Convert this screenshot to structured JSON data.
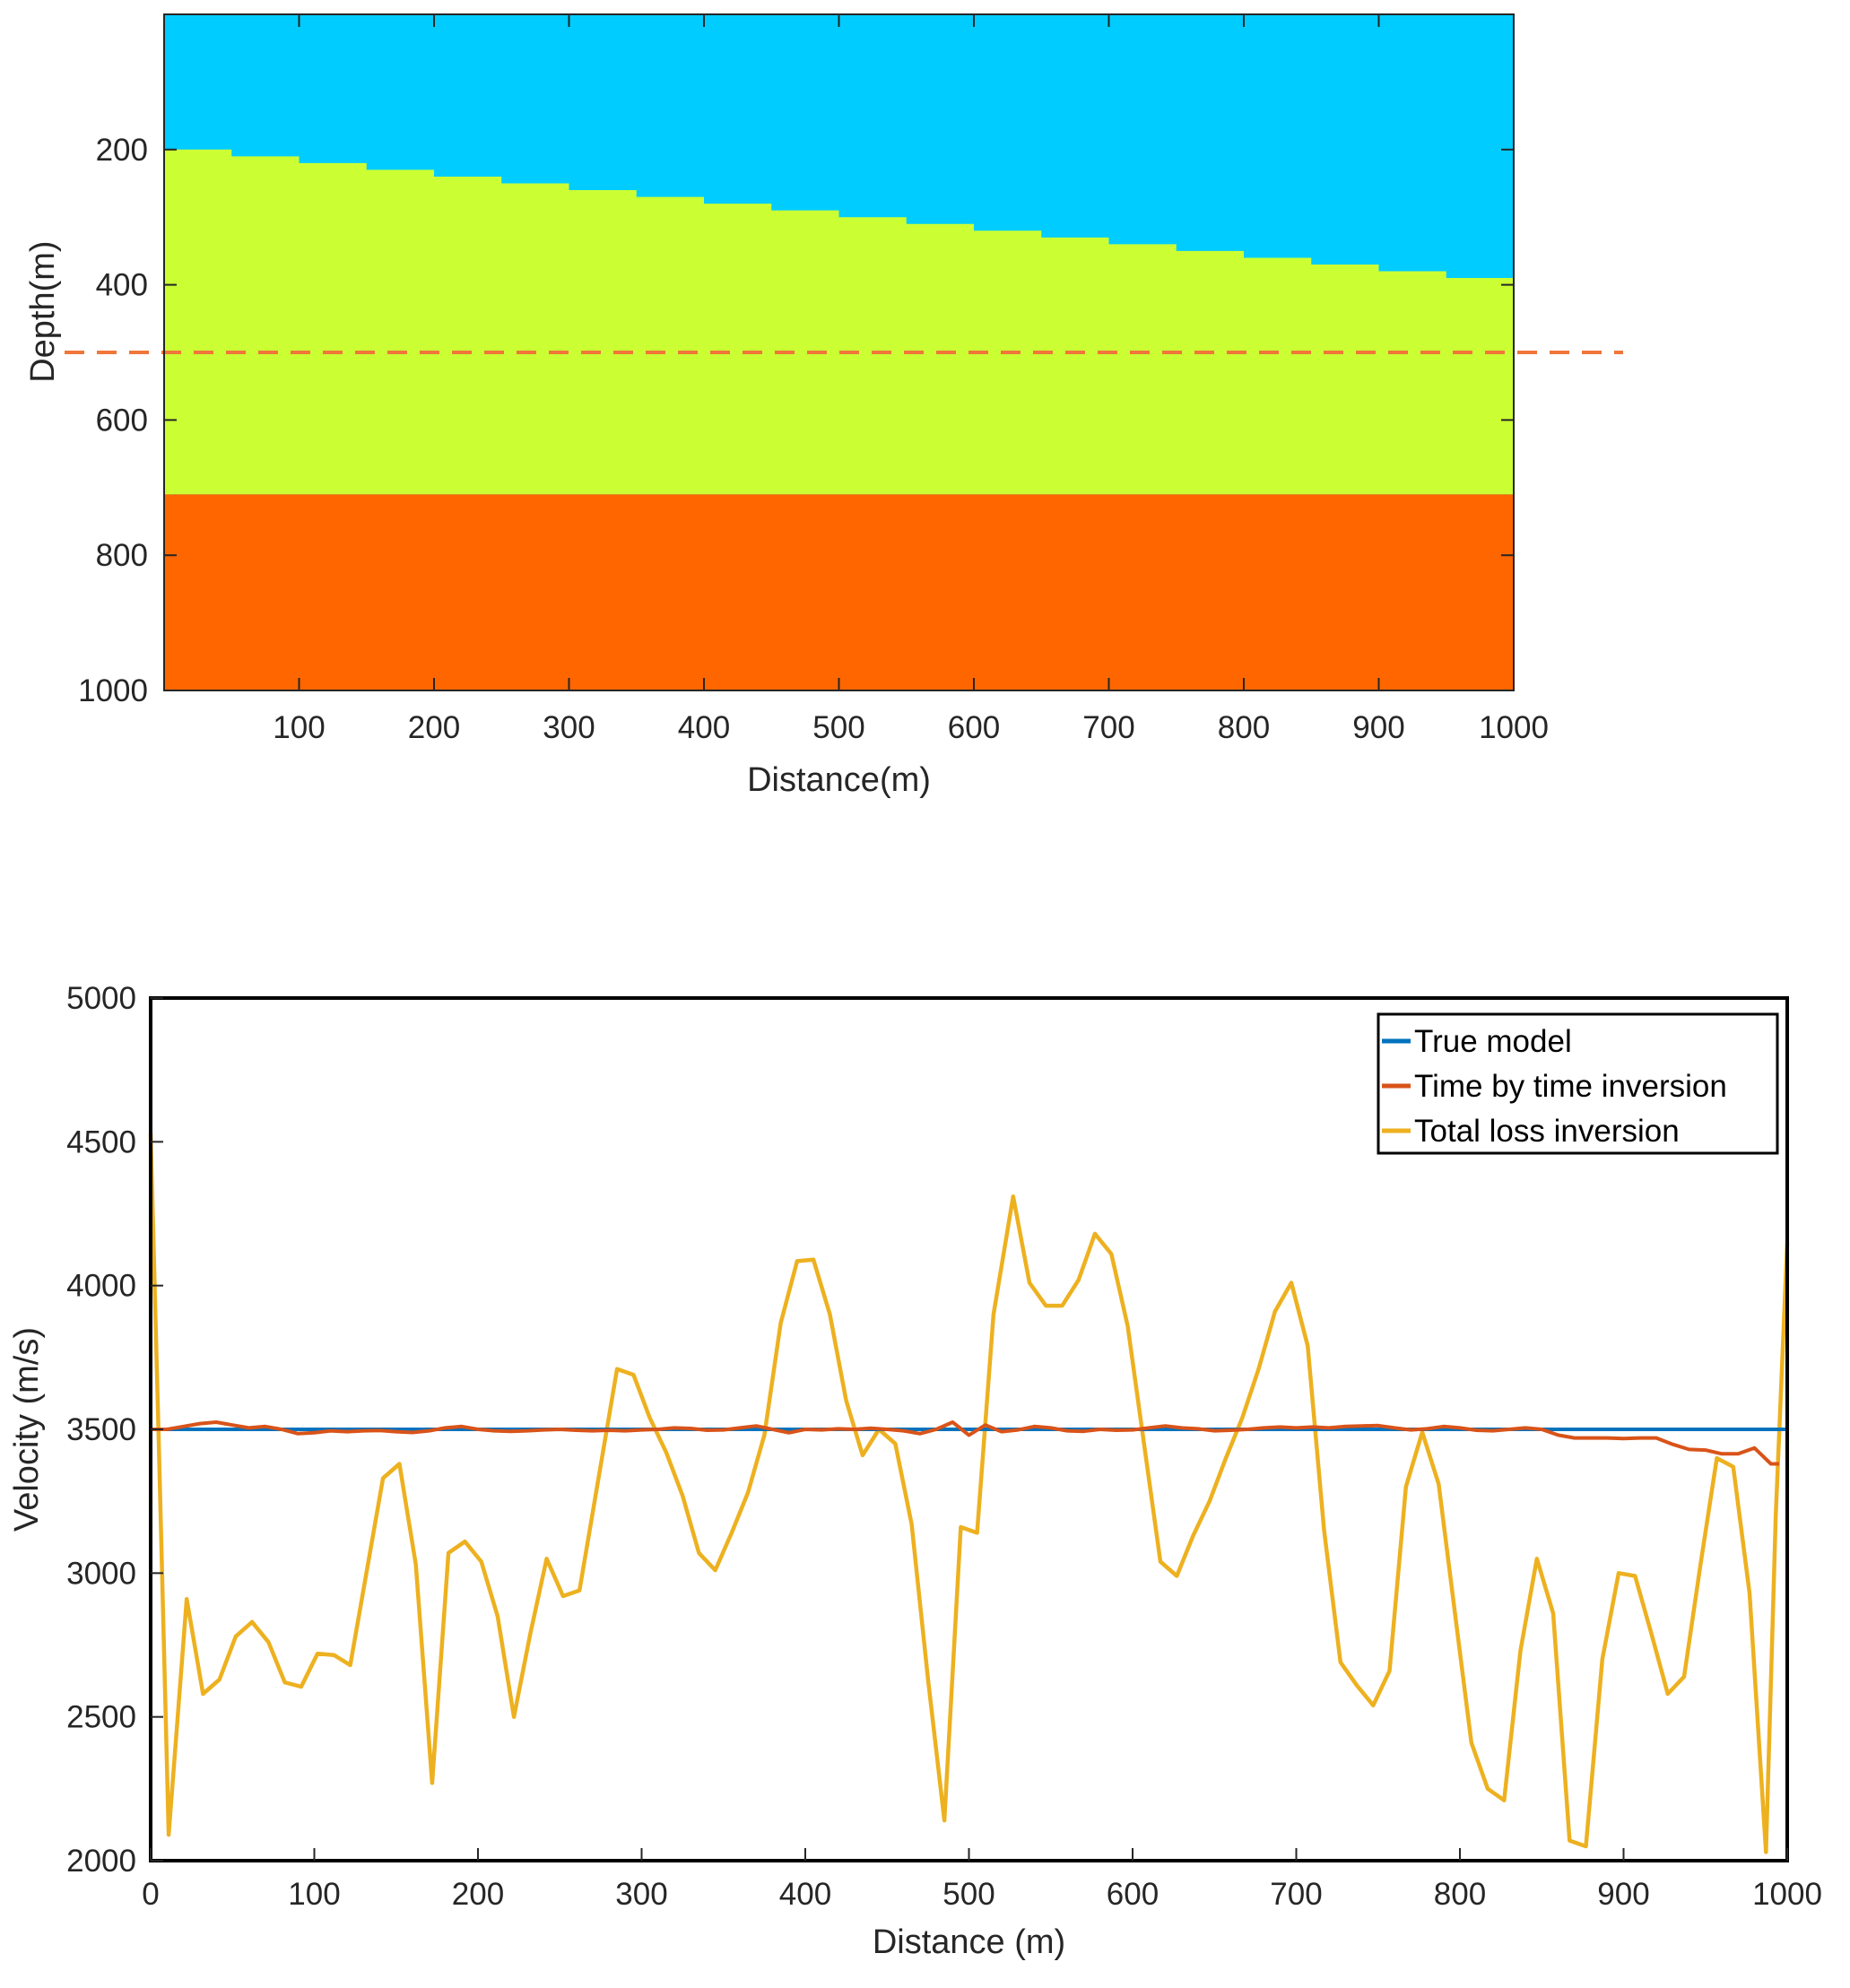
{
  "chart_data": [
    {
      "type": "heatmap",
      "xlabel": "Distance(m)",
      "ylabel": "Depth(m)",
      "xlim": [
        0,
        1000
      ],
      "ylim": [
        0,
        1000
      ],
      "y_reversed": true,
      "xticks": [
        100,
        200,
        300,
        400,
        500,
        600,
        700,
        800,
        900,
        1000
      ],
      "yticks": [
        200,
        400,
        600,
        800,
        1000
      ],
      "layers": [
        {
          "color": "#00ccff",
          "top_depth_at_x0": 0,
          "top_depth_at_x1000": 0
        },
        {
          "color": "#ccff33",
          "top_depth_at_x0": 200,
          "top_depth_at_x1000": 400
        },
        {
          "color": "#ff6600",
          "top_depth_at_x0": 710,
          "top_depth_at_x1000": 710
        }
      ],
      "interface_step_m": 50,
      "reference_line": {
        "depth": 500,
        "style": "dashed",
        "color": "#f0763a"
      }
    },
    {
      "type": "line",
      "xlabel": "Distance (m)",
      "ylabel": "Velocity (m/s)",
      "xlim": [
        0,
        1000
      ],
      "ylim": [
        2000,
        5000
      ],
      "xticks": [
        0,
        100,
        200,
        300,
        400,
        500,
        600,
        700,
        800,
        900,
        1000
      ],
      "yticks": [
        2000,
        2500,
        3000,
        3500,
        4000,
        4500,
        5000
      ],
      "legend_position": "top-right",
      "series": [
        {
          "name": "True model",
          "color": "#0072bd",
          "x": [
            0,
            1000
          ],
          "y": [
            3500,
            3500
          ]
        },
        {
          "name": "Time by time inversion",
          "color": "#d95319",
          "x": [
            0,
            10,
            20,
            30,
            40,
            50,
            60,
            70,
            80,
            90,
            100,
            110,
            120,
            130,
            140,
            150,
            160,
            170,
            180,
            190,
            200,
            210,
            220,
            230,
            240,
            250,
            260,
            270,
            280,
            290,
            300,
            310,
            320,
            330,
            340,
            350,
            360,
            370,
            380,
            390,
            400,
            410,
            420,
            430,
            440,
            450,
            460,
            470,
            480,
            490,
            500,
            510,
            520,
            530,
            540,
            550,
            560,
            570,
            580,
            590,
            600,
            610,
            620,
            630,
            640,
            650,
            660,
            670,
            680,
            690,
            700,
            710,
            720,
            730,
            740,
            750,
            760,
            770,
            780,
            790,
            800,
            810,
            820,
            830,
            840,
            850,
            860,
            870,
            880,
            890,
            900,
            910,
            920,
            930,
            940,
            950,
            960,
            970,
            980,
            990,
            995
          ],
          "y": [
            3500,
            3500,
            3510,
            3520,
            3525,
            3515,
            3505,
            3510,
            3500,
            3485,
            3488,
            3495,
            3492,
            3495,
            3496,
            3492,
            3489,
            3495,
            3505,
            3510,
            3500,
            3495,
            3493,
            3495,
            3498,
            3500,
            3497,
            3495,
            3497,
            3495,
            3498,
            3500,
            3505,
            3503,
            3497,
            3498,
            3505,
            3512,
            3500,
            3488,
            3500,
            3498,
            3502,
            3500,
            3504,
            3500,
            3495,
            3485,
            3500,
            3525,
            3480,
            3515,
            3492,
            3498,
            3510,
            3505,
            3495,
            3493,
            3500,
            3497,
            3498,
            3505,
            3512,
            3505,
            3502,
            3495,
            3497,
            3500,
            3505,
            3508,
            3505,
            3508,
            3505,
            3510,
            3512,
            3513,
            3505,
            3498,
            3502,
            3510,
            3505,
            3497,
            3495,
            3500,
            3505,
            3500,
            3480,
            3470,
            3470,
            3470,
            3468,
            3470,
            3470,
            3448,
            3430,
            3428,
            3415,
            3415,
            3435,
            3380,
            3380
          ]
        },
        {
          "name": "Total loss inversion",
          "color": "#edb120",
          "x": [
            0,
            5,
            11,
            22,
            32,
            42,
            52,
            62,
            72,
            82,
            92,
            102,
            112,
            122,
            142,
            152,
            162,
            172,
            182,
            192,
            202,
            212,
            222,
            232,
            242,
            252,
            262,
            285,
            295,
            305,
            315,
            325,
            335,
            345,
            355,
            365,
            375,
            385,
            395,
            405,
            415,
            425,
            435,
            445,
            455,
            465,
            475,
            485,
            495,
            505,
            515,
            527,
            537,
            547,
            557,
            567,
            577,
            587,
            597,
            617,
            627,
            637,
            647,
            657,
            667,
            677,
            687,
            697,
            707,
            717,
            727,
            737,
            747,
            757,
            767,
            777,
            787,
            797,
            807,
            817,
            827,
            837,
            847,
            857,
            867,
            877,
            887,
            897,
            907,
            917,
            927,
            937,
            947,
            957,
            967,
            977,
            987,
            993,
            1000
          ],
          "y": [
            4530,
            3450,
            2090,
            2910,
            2580,
            2630,
            2780,
            2830,
            2760,
            2620,
            2605,
            2720,
            2715,
            2680,
            3330,
            3380,
            3030,
            2270,
            3070,
            3110,
            3040,
            2850,
            2500,
            2790,
            3050,
            2920,
            2940,
            3710,
            3690,
            3540,
            3420,
            3270,
            3070,
            3010,
            3140,
            3280,
            3480,
            3870,
            4085,
            4090,
            3900,
            3600,
            3410,
            3500,
            3450,
            3170,
            2630,
            2140,
            3160,
            3140,
            3900,
            4310,
            4010,
            3930,
            3930,
            4020,
            4180,
            4110,
            3860,
            3040,
            2990,
            3130,
            3250,
            3400,
            3540,
            3710,
            3910,
            4010,
            3790,
            3150,
            2690,
            2610,
            2540,
            2660,
            3300,
            3490,
            3310,
            2860,
            2410,
            2250,
            2210,
            2730,
            3050,
            2860,
            2070,
            2050,
            2700,
            3000,
            2990,
            2790,
            2580,
            2640,
            3030,
            3400,
            3370,
            2930,
            2030,
            3200,
            4150
          ]
        }
      ]
    }
  ]
}
